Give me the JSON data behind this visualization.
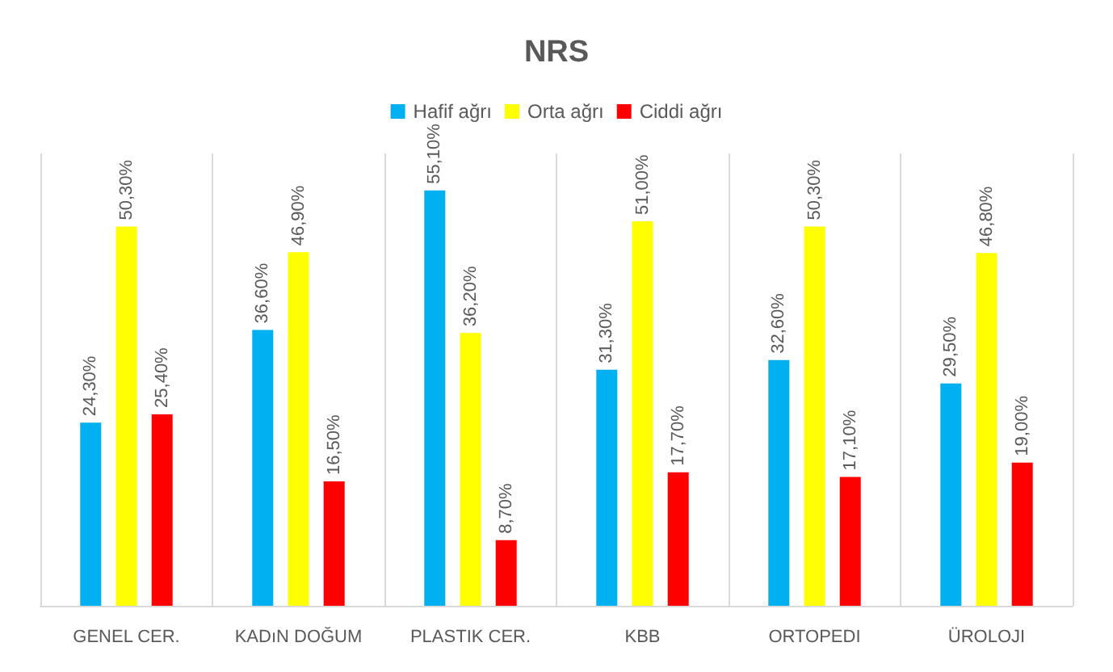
{
  "chart_data": {
    "type": "bar",
    "title": "NRS",
    "categories": [
      "GENEL CER.",
      "KADıN DOĞUM",
      "PLASTIK CER.",
      "KBB",
      "ORTOPEDI",
      "ÜROLOJI"
    ],
    "series": [
      {
        "name": "Hafif ağrı",
        "color": "#00b0f0",
        "values": [
          24.3,
          36.6,
          55.1,
          31.3,
          32.6,
          29.5
        ],
        "value_labels": [
          "24,30%",
          "36,60%",
          "55,10%",
          "31,30%",
          "32,60%",
          "29,50%"
        ]
      },
      {
        "name": "Orta ağrı",
        "color": "#ffff00",
        "values": [
          50.3,
          46.9,
          36.2,
          51.0,
          50.3,
          46.8
        ],
        "value_labels": [
          "50,30%",
          "46,90%",
          "36,20%",
          "51,00%",
          "50,30%",
          "46,80%"
        ]
      },
      {
        "name": "Ciddi ağrı",
        "color": "#ff0000",
        "values": [
          25.4,
          16.5,
          8.7,
          17.7,
          17.1,
          19.0
        ],
        "value_labels": [
          "25,40%",
          "16,50%",
          "8,70%",
          "17,70%",
          "17,10%",
          "19,00%"
        ]
      }
    ],
    "grid": "x",
    "legend": "top"
  }
}
